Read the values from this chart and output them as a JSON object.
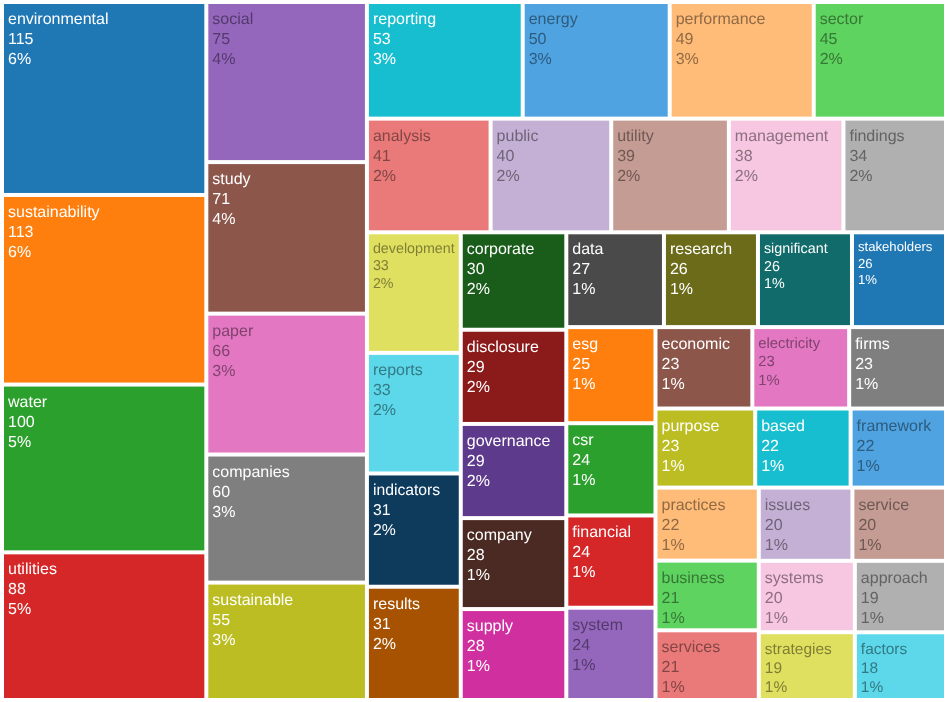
{
  "chart_data": {
    "type": "other",
    "categories": [
      "environmental",
      "sustainability",
      "water",
      "utilities",
      "social",
      "study",
      "paper",
      "companies",
      "sustainable",
      "reporting",
      "energy",
      "performance",
      "sector",
      "analysis",
      "public",
      "utility",
      "management",
      "findings",
      "development",
      "reports",
      "indicators",
      "results",
      "corporate",
      "disclosure",
      "governance",
      "company",
      "supply",
      "data",
      "research",
      "significant",
      "stakeholders",
      "esg",
      "csr",
      "financial",
      "system",
      "economic",
      "electricity",
      "firms",
      "purpose",
      "based",
      "framework",
      "practices",
      "business",
      "services",
      "issues",
      "service",
      "systems",
      "strategies",
      "approach",
      "factors"
    ],
    "values": [
      115,
      113,
      100,
      88,
      75,
      71,
      66,
      60,
      55,
      53,
      50,
      49,
      45,
      41,
      40,
      39,
      38,
      34,
      33,
      33,
      31,
      31,
      30,
      29,
      29,
      28,
      28,
      27,
      26,
      26,
      26,
      25,
      24,
      24,
      24,
      23,
      23,
      23,
      23,
      22,
      22,
      22,
      21,
      21,
      20,
      20,
      20,
      19,
      19,
      18
    ],
    "data_labels": true,
    "annotations": [
      {
        "text": "6%",
        "x": "environmental"
      },
      {
        "text": "6%",
        "x": "sustainability"
      },
      {
        "text": "5%",
        "x": "water"
      },
      {
        "text": "5%",
        "x": "utilities"
      },
      {
        "text": "4%",
        "x": "social"
      },
      {
        "text": "4%",
        "x": "study"
      },
      {
        "text": "3%",
        "x": "paper"
      },
      {
        "text": "3%",
        "x": "companies"
      },
      {
        "text": "3%",
        "x": "sustainable"
      },
      {
        "text": "3%",
        "x": "reporting"
      },
      {
        "text": "3%",
        "x": "energy"
      },
      {
        "text": "3%",
        "x": "performance"
      },
      {
        "text": "2%",
        "x": "sector"
      },
      {
        "text": "2%",
        "x": "analysis"
      },
      {
        "text": "2%",
        "x": "public"
      },
      {
        "text": "2%",
        "x": "utility"
      },
      {
        "text": "2%",
        "x": "management"
      },
      {
        "text": "2%",
        "x": "findings"
      },
      {
        "text": "2%",
        "x": "development"
      },
      {
        "text": "2%",
        "x": "reports"
      },
      {
        "text": "2%",
        "x": "indicators"
      },
      {
        "text": "2%",
        "x": "results"
      },
      {
        "text": "2%",
        "x": "corporate"
      },
      {
        "text": "2%",
        "x": "disclosure"
      },
      {
        "text": "2%",
        "x": "governance"
      },
      {
        "text": "1%",
        "x": "company"
      },
      {
        "text": "1%",
        "x": "supply"
      },
      {
        "text": "1%",
        "x": "data"
      },
      {
        "text": "1%",
        "x": "research"
      },
      {
        "text": "1%",
        "x": "significant"
      },
      {
        "text": "1%",
        "x": "stakeholders"
      },
      {
        "text": "1%",
        "x": "esg"
      },
      {
        "text": "1%",
        "x": "csr"
      },
      {
        "text": "1%",
        "x": "financial"
      },
      {
        "text": "1%",
        "x": "system"
      },
      {
        "text": "1%",
        "x": "economic"
      },
      {
        "text": "1%",
        "x": "electricity"
      },
      {
        "text": "1%",
        "x": "firms"
      },
      {
        "text": "1%",
        "x": "purpose"
      },
      {
        "text": "1%",
        "x": "based"
      },
      {
        "text": "1%",
        "x": "framework"
      },
      {
        "text": "1%",
        "x": "practices"
      },
      {
        "text": "1%",
        "x": "business"
      },
      {
        "text": "1%",
        "x": "services"
      },
      {
        "text": "1%",
        "x": "issues"
      },
      {
        "text": "1%",
        "x": "service"
      },
      {
        "text": "1%",
        "x": "systems"
      },
      {
        "text": "1%",
        "x": "strategies"
      },
      {
        "text": "1%",
        "x": "approach"
      },
      {
        "text": "1%",
        "x": "factors"
      }
    ],
    "colors": [
      "#1f77b4",
      "#ff7f0e",
      "#2ca02c",
      "#d62728",
      "#9467bd",
      "#8c564b",
      "#e377c2",
      "#7f7f7f",
      "#bcbd22",
      "#17becf",
      "#4fa3e0",
      "#ffbb78",
      "#5fd35f",
      "#ea7a7a",
      "#c5b0d5",
      "#c49c94",
      "#f7c6e0",
      "#b0b0b0",
      "#e0e060",
      "#5cd8ea",
      "#0e3a5c",
      "#a65200",
      "#1a5c1a",
      "#8b1a1a",
      "#5e3a8c",
      "#4a2a22",
      "#d02fa0",
      "#4a4a4a",
      "#6b6b1a",
      "#126b6b",
      "#1f77b4",
      "#ff7f0e",
      "#2ca02c",
      "#d62728",
      "#9467bd",
      "#8c564b",
      "#e377c2",
      "#7f7f7f",
      "#bcbd22",
      "#17becf",
      "#4fa3e0",
      "#ffbb78",
      "#5fd35f",
      "#ea7a7a",
      "#c5b0d5",
      "#c49c94",
      "#f7c6e0",
      "#e0e060",
      "#b0b0b0",
      "#5cd8ea"
    ]
  }
}
